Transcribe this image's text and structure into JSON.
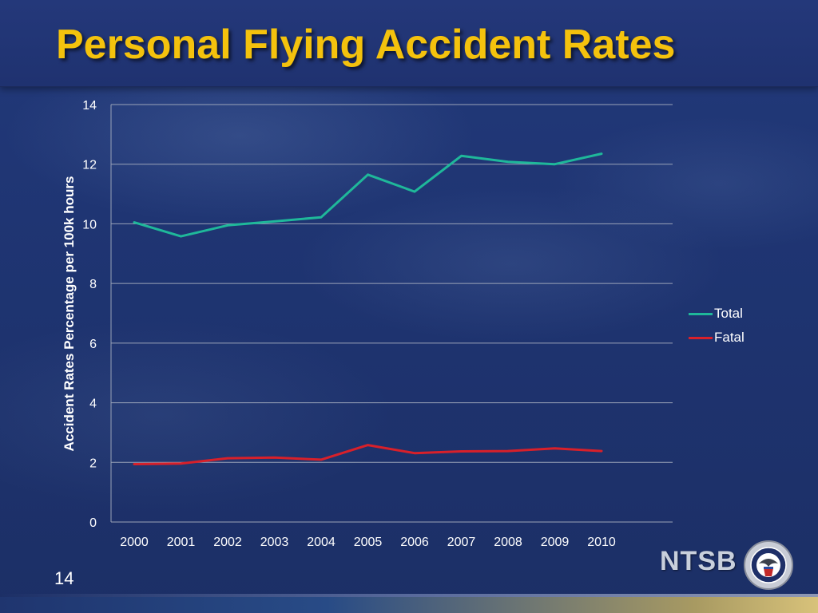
{
  "slide": {
    "title": "Personal Flying Accident Rates",
    "number": "14",
    "logo_text": "NTSB"
  },
  "colors": {
    "title": "#f4c20d",
    "total": "#1fb89a",
    "fatal": "#d8202a",
    "grid": "#9aa3b8",
    "text": "#ffffff"
  },
  "icons": {
    "seal": "ntsb-seal-icon"
  },
  "chart_data": {
    "type": "line",
    "title": "",
    "xlabel": "",
    "ylabel": "Accident Rates Percentage per 100k hours",
    "categories": [
      "2000",
      "2001",
      "2002",
      "2003",
      "2004",
      "2005",
      "2006",
      "2007",
      "2008",
      "2009",
      "2010"
    ],
    "ylim": [
      0,
      14
    ],
    "yticks": [
      0,
      2,
      4,
      6,
      8,
      10,
      12,
      14
    ],
    "grid": true,
    "legend_position": "right",
    "series": [
      {
        "name": "Total",
        "color": "#1fb89a",
        "values": [
          10.05,
          9.58,
          9.95,
          10.08,
          10.22,
          11.65,
          11.08,
          12.28,
          12.08,
          12.0,
          12.35
        ]
      },
      {
        "name": "Fatal",
        "color": "#d8202a",
        "values": [
          1.94,
          1.96,
          2.14,
          2.16,
          2.09,
          2.58,
          2.31,
          2.37,
          2.38,
          2.47,
          2.38
        ]
      }
    ]
  }
}
